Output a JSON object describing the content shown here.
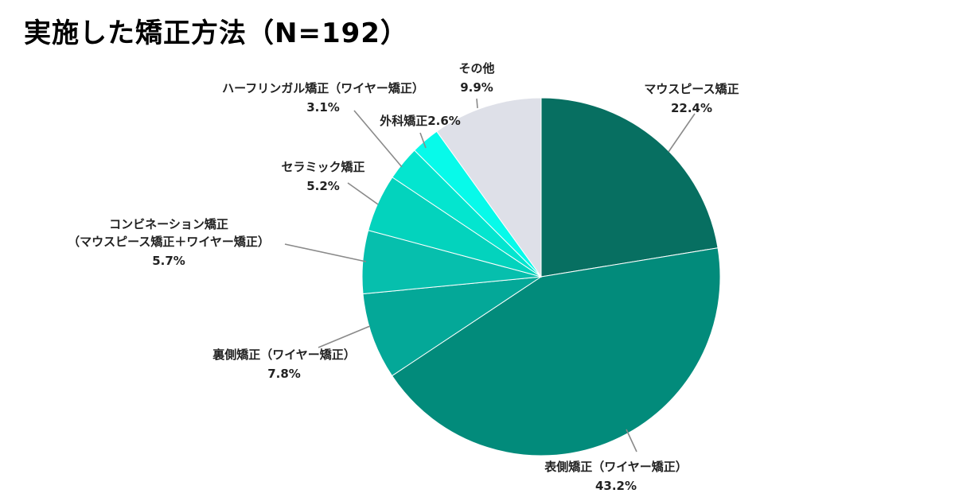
{
  "chart_data": {
    "type": "pie",
    "title": "実施した矯正方法（N=192）",
    "slices": [
      {
        "label": "マウスピース矯正",
        "value": 22.4,
        "display": "22.4%",
        "color": "#076f61"
      },
      {
        "label": "表側矯正（ワイヤー矯正）",
        "value": 43.2,
        "display": "43.2%",
        "color": "#028b7b"
      },
      {
        "label": "裏側矯正（ワイヤー矯正）",
        "value": 7.8,
        "display": "7.8%",
        "color": "#04a898"
      },
      {
        "label": "コンビネーション矯正\n（マウスピース矯正＋ワイヤー矯正）",
        "value": 5.7,
        "display": "5.7%",
        "color": "#06bfad"
      },
      {
        "label": "セラミック矯正",
        "value": 5.2,
        "display": "5.2%",
        "color": "#03d3bd"
      },
      {
        "label": "ハーフリンガル矯正（ワイヤー矯正）",
        "value": 3.1,
        "display": "3.1%",
        "color": "#04e5cf"
      },
      {
        "label": "外科矯正",
        "value": 2.6,
        "display": "2.6%",
        "color": "#07faea"
      },
      {
        "label": "その他",
        "value": 9.9,
        "display": "9.9%",
        "color": "#dee0e8"
      }
    ],
    "start": "12 o'clock",
    "direction": "clockwise",
    "legend": "none"
  }
}
